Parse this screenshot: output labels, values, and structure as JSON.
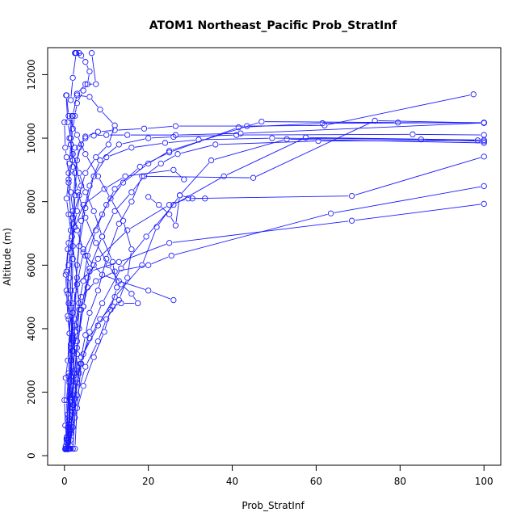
{
  "chart_data": {
    "type": "line",
    "title": "ATOM1 Northeast_Pacific Prob_StratInf",
    "xlabel": "Prob_StratInf",
    "ylabel": "Altitude (m)",
    "xlim": [
      -4,
      104
    ],
    "ylim": [
      -300,
      12850
    ],
    "xticks": [
      0,
      20,
      40,
      60,
      80,
      100
    ],
    "yticks": [
      0,
      2000,
      4000,
      6000,
      8000,
      10000,
      12000
    ],
    "grid": false,
    "legend": "none",
    "line_color": "#1a1aff",
    "series": [
      {
        "x": [
          0.3,
          0.6,
          1.0,
          1.3,
          1.5,
          2.0,
          1.8,
          1.2,
          1.5,
          2.5,
          4.5,
          9.5,
          14.5,
          26.0,
          28.5
        ],
        "y": [
          220,
          600,
          1100,
          1800,
          2500,
          3600,
          4800,
          5600,
          6400,
          7200,
          7900,
          8400,
          8800,
          9000,
          8700
        ]
      },
      {
        "x": [
          0.5,
          0.8,
          1.0,
          1.2,
          1.5,
          2.0,
          3.0,
          6.0,
          13.0,
          25.0,
          68.5,
          100
        ],
        "y": [
          220,
          500,
          1000,
          1900,
          3000,
          4500,
          5400,
          5800,
          6100,
          6700,
          7400,
          7930
        ]
      },
      {
        "x": [
          1.0,
          1.5,
          2.0,
          2.2,
          2.5,
          4.0,
          7.5,
          12.0,
          20.0,
          25.5,
          63.5,
          100
        ],
        "y": [
          220,
          700,
          1500,
          2600,
          3900,
          5000,
          5500,
          5800,
          6000,
          6300,
          7630,
          8490
        ]
      },
      {
        "x": [
          1.2,
          2.0,
          2.5,
          3.0,
          4.0,
          5.5,
          8.0,
          15.0,
          25.0,
          29.5,
          68.5,
          100
        ],
        "y": [
          220,
          900,
          1800,
          3200,
          4600,
          5600,
          6200,
          7100,
          7900,
          8100,
          8180,
          9420
        ]
      },
      {
        "x": [
          0.5,
          1.0,
          1.2,
          1.5,
          2.0,
          3.0,
          4.5,
          9.0,
          12.0,
          18.0,
          25.0,
          41.5,
          61.5,
          100
        ],
        "y": [
          230,
          1200,
          2300,
          3400,
          4500,
          5400,
          6400,
          7600,
          8400,
          9100,
          9550,
          10340,
          10470,
          10490
        ]
      },
      {
        "x": [
          1.0,
          1.5,
          2.0,
          3.0,
          4.0,
          5.0,
          6.0,
          8.0,
          10.0,
          13.0,
          16.0,
          18.5,
          45.0,
          74.0,
          100
        ],
        "y": [
          230,
          800,
          1600,
          2400,
          3100,
          3800,
          4500,
          5200,
          6200,
          7300,
          8000,
          8800,
          8750,
          10550,
          10480
        ]
      },
      {
        "x": [
          0.3,
          0.8,
          1.2,
          1.8,
          2.5,
          3.5,
          4.5,
          5.5,
          7.5,
          10.0,
          14.0,
          20.0,
          25.0,
          47.0,
          79.5,
          100
        ],
        "y": [
          300,
          1300,
          2400,
          3300,
          4100,
          4800,
          5500,
          6300,
          7100,
          7900,
          8600,
          9200,
          9600,
          10520,
          10490,
          10480
        ]
      },
      {
        "x": [
          2.0,
          3.0,
          4.5,
          8.0,
          12.0,
          18.5,
          22.0,
          27.5,
          35.0,
          53.0,
          100
        ],
        "y": [
          220,
          2300,
          3200,
          4100,
          5000,
          6000,
          7200,
          8200,
          9300,
          9970,
          9850
        ]
      },
      {
        "x": [
          2.5,
          3.0,
          4.0,
          6.0,
          9.0,
          13.5,
          19.5,
          26.0,
          38.0,
          57.5,
          100
        ],
        "y": [
          220,
          1500,
          2900,
          3900,
          4800,
          5900,
          6900,
          7900,
          8800,
          10020,
          9940
        ]
      },
      {
        "x": [
          1.5,
          2.0,
          3.0,
          4.5,
          6.0,
          9.0,
          12.0,
          16.0,
          19.0,
          23.0,
          27.0,
          36.0,
          60.5,
          98.5
        ],
        "y": [
          500,
          1900,
          3400,
          4700,
          5900,
          6900,
          7700,
          8300,
          8800,
          9200,
          9500,
          9800,
          9910,
          9930
        ]
      },
      {
        "x": [
          1.0,
          1.5,
          2.0,
          2.5,
          3.5,
          5.0,
          7.0,
          10.0,
          16.0,
          24.0,
          32.0,
          49.5,
          85.0,
          100
        ],
        "y": [
          220,
          1700,
          3800,
          5200,
          6600,
          7800,
          8800,
          9400,
          9700,
          9850,
          9950,
          10000,
          9960,
          9900
        ]
      },
      {
        "x": [
          1.5,
          2.0,
          2.5,
          3.0,
          4.0,
          6.0,
          8.5,
          13.0,
          20.0,
          26.0,
          41.0,
          83.0,
          100
        ],
        "y": [
          300,
          2200,
          4300,
          6000,
          7400,
          8500,
          9300,
          9800,
          10000,
          10040,
          10100,
          10120,
          10100
        ]
      },
      {
        "x": [
          0.5,
          1.0,
          1.5,
          2.0,
          2.5,
          3.5,
          5.0,
          8.0,
          12.0,
          19.0,
          26.5,
          43.5,
          62.0,
          97.5
        ],
        "y": [
          400,
          2600,
          5200,
          7300,
          8900,
          9700,
          10050,
          10200,
          10250,
          10300,
          10380,
          10380,
          10400,
          11380
        ]
      },
      {
        "x": [
          1.0,
          1.5,
          2.0,
          2.5,
          3.0,
          4.0,
          5.0,
          7.0,
          10.0,
          15.0,
          26.5,
          42.0,
          100
        ],
        "y": [
          220,
          3000,
          6200,
          8200,
          9300,
          9800,
          10000,
          10080,
          10100,
          10100,
          10100,
          10150,
          10480
        ]
      },
      {
        "x": [
          0.2,
          0.5,
          1.0,
          1.5,
          2.5,
          3.0,
          3.5,
          3.0,
          2.0,
          1.5,
          1.0,
          1.2,
          1.5,
          2.0,
          2.5,
          3.0,
          4.5,
          5.5,
          6.0,
          5.0,
          4.0,
          3.5,
          2.5
        ],
        "y": [
          200,
          500,
          1000,
          1800,
          2700,
          3600,
          4600,
          5600,
          6600,
          7600,
          8600,
          9200,
          9800,
          10300,
          10700,
          11100,
          11500,
          11700,
          12100,
          12400,
          12600,
          12680,
          12680
        ]
      },
      {
        "x": [
          0.8,
          1.0,
          1.5,
          2.5,
          1.5,
          1.0,
          0.8,
          1.0,
          1.8,
          3.0,
          4.0,
          2.0,
          1.5,
          2.0,
          3.0,
          5.0,
          7.5,
          6.5
        ],
        "y": [
          200,
          900,
          1700,
          2600,
          3500,
          4300,
          5100,
          6000,
          6900,
          7700,
          8500,
          9300,
          10000,
          10700,
          11400,
          11700,
          11700,
          12680
        ]
      },
      {
        "x": [
          1.0,
          2.0,
          3.5,
          2.0,
          1.0,
          0.5,
          1.0,
          2.0,
          3.5,
          5.0,
          7.5,
          10.5,
          12.0,
          8.5,
          6.0,
          3.0,
          1.5,
          2.0,
          2.8,
          2.6
        ],
        "y": [
          220,
          1400,
          2600,
          3700,
          4800,
          5800,
          6700,
          7500,
          8200,
          8900,
          9400,
          9800,
          10400,
          10900,
          11300,
          11350,
          11200,
          11900,
          12680,
          12680
        ]
      },
      {
        "x": [
          0.5,
          1.5,
          3.0,
          5.0,
          8.0,
          10.0,
          13.0,
          15.0,
          16.0,
          14.0,
          11.0,
          8.0,
          5.0,
          3.0,
          1.0,
          0.5
        ],
        "y": [
          220,
          900,
          1900,
          2800,
          3600,
          4300,
          4900,
          5600,
          6500,
          7400,
          8100,
          8800,
          9500,
          10100,
          10700,
          11350
        ]
      },
      {
        "x": [
          0.8,
          2.5,
          4.5,
          7.0,
          9.5,
          11.0,
          12.5,
          11.5,
          9.0,
          7.0,
          5.0,
          3.5,
          2.0,
          1.2,
          1.8
        ],
        "y": [
          220,
          1200,
          2200,
          3100,
          3900,
          4600,
          5300,
          6100,
          6900,
          7700,
          8300,
          8900,
          9500,
          10000,
          10700
        ]
      },
      {
        "x": [
          1.2,
          2.2,
          3.8,
          6.0,
          8.5,
          11.5,
          13.5,
          17.5,
          16.0,
          13.5,
          10.5,
          7.5,
          5.0,
          3.2,
          2.0,
          1.5
        ],
        "y": [
          220,
          1600,
          2900,
          3700,
          4300,
          4700,
          4800,
          4800,
          5100,
          5400,
          6000,
          6700,
          7500,
          8300,
          9100,
          9800
        ]
      },
      {
        "x": [
          0.2,
          0.5,
          0.2,
          0.0,
          0.3,
          0.8,
          1.2,
          0.8,
          0.5,
          0.3,
          0.8,
          1.5,
          1.0,
          0.5,
          1.0,
          2.0,
          2.5,
          1.5,
          0.8,
          0.4
        ],
        "y": [
          220,
          550,
          950,
          1750,
          2450,
          3000,
          3850,
          4400,
          5200,
          5700,
          6500,
          7100,
          7600,
          8100,
          8700,
          9300,
          9700,
          10000,
          10500,
          11350
        ]
      },
      {
        "x": [
          1.5,
          0.8,
          0.5,
          1.0,
          2.0,
          3.5,
          4.5,
          5.5,
          6.0,
          4.5,
          3.0,
          2.0,
          1.5,
          1.0,
          0.5,
          0.2,
          0.0
        ],
        "y": [
          220,
          900,
          1750,
          2500,
          3300,
          4000,
          4700,
          5300,
          5900,
          6500,
          7100,
          7700,
          8300,
          8900,
          9400,
          9700,
          10500
        ]
      },
      {
        "x": [
          26.0,
          20.0,
          13.0,
          9.0,
          7.0,
          5.0
        ],
        "y": [
          4900,
          5200,
          5500,
          5700,
          6000,
          6300
        ]
      },
      {
        "x": [
          20.0,
          22.5,
          25.0,
          26.5,
          27.5,
          30.5,
          33.5
        ],
        "y": [
          8150,
          7900,
          7600,
          7250,
          8200,
          8100,
          8100
        ]
      }
    ]
  }
}
